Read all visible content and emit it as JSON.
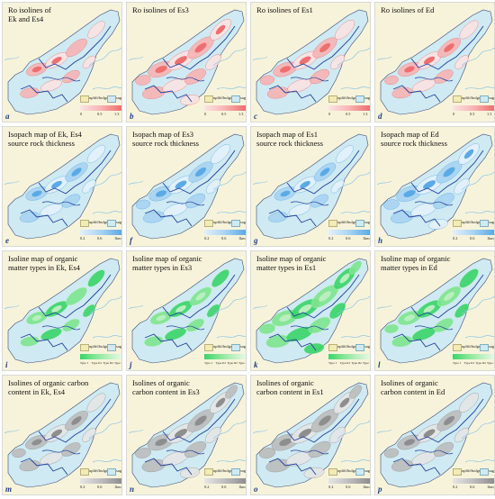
{
  "legend_common": {
    "uplift_label": "uplift/bulge",
    "sag_label": "sag",
    "colors": {
      "uplift": "#f3ebb4",
      "sag": "#cfeaf2",
      "fault": "#1f3f9c",
      "river": "#8bc6e6",
      "boundary": "#3a4a78"
    }
  },
  "rows": [
    {
      "name": "ro",
      "ticks": [
        "0",
        "0.5",
        "1.3"
      ],
      "ramp": [
        "#fbe4e4",
        "#f7b4b4",
        "#ee6f6f"
      ]
    },
    {
      "name": "thickness",
      "ticks": [
        "0.2",
        "0.6",
        "1km"
      ],
      "ramp": [
        "#e4f1fb",
        "#a9d3f1",
        "#5aaae6"
      ]
    },
    {
      "name": "type",
      "ticks": [
        "Type I",
        "Type II1",
        "Type II2",
        "Type III"
      ],
      "ramp": [
        "#3ad46a",
        "#7ee58f",
        "#b8efbd",
        "#e3f8e4"
      ]
    },
    {
      "name": "toc",
      "ticks": [
        "0.2",
        "0.6",
        "1km"
      ],
      "ramp": [
        "#e6e6e6",
        "#bdbdbd",
        "#8e8e8e"
      ]
    }
  ],
  "panels": [
    {
      "letter": "a",
      "title": "Ro isolines of\nEk and Es4",
      "row": 0,
      "intensity": 0.35
    },
    {
      "letter": "b",
      "title": "Ro isolines of Es3",
      "row": 0,
      "intensity": 0.75
    },
    {
      "letter": "c",
      "title": "Ro isolines of Es1",
      "row": 0,
      "intensity": 0.6
    },
    {
      "letter": "d",
      "title": "Ro isolines of Ed",
      "row": 0,
      "intensity": 0.5
    },
    {
      "letter": "e",
      "title": "Isopach map of Ek, Es4\nsource rock thickness",
      "row": 1,
      "intensity": 0.45
    },
    {
      "letter": "f",
      "title": "Isopach map of Es3\nsource rock thickness",
      "row": 1,
      "intensity": 0.6
    },
    {
      "letter": "g",
      "title": "Isopach map of Es1\nsource rock thickness",
      "row": 1,
      "intensity": 0.4
    },
    {
      "letter": "h",
      "title": "Isopach map of Ed\nsource rock thickness",
      "row": 1,
      "intensity": 0.75
    },
    {
      "letter": "i",
      "title": "Isoline map of organic\nmatter types in Ek, Es4",
      "row": 2,
      "intensity": 0.35
    },
    {
      "letter": "j",
      "title": "Isoline map of organic\nmatter types in Es3",
      "row": 2,
      "intensity": 0.4
    },
    {
      "letter": "k",
      "title": "Isoline map of organic\nmatter types in Es1",
      "row": 2,
      "intensity": 0.85
    },
    {
      "letter": "l",
      "title": "Isoline map of organic\nmatter types in Ed",
      "row": 2,
      "intensity": 0.55
    },
    {
      "letter": "m",
      "title": "Isolines of organic carbon\ncontent in Ek, Es4",
      "row": 3,
      "intensity": 0.5
    },
    {
      "letter": "n",
      "title": "Isolines of organic\ncarbon content in Es3",
      "row": 3,
      "intensity": 0.8
    },
    {
      "letter": "o",
      "title": "Isolines of organic\ncarbon content in Es1",
      "row": 3,
      "intensity": 0.85
    },
    {
      "letter": "p",
      "title": "Isolines of organic\ncarbon content in Ed",
      "row": 3,
      "intensity": 0.6
    }
  ]
}
